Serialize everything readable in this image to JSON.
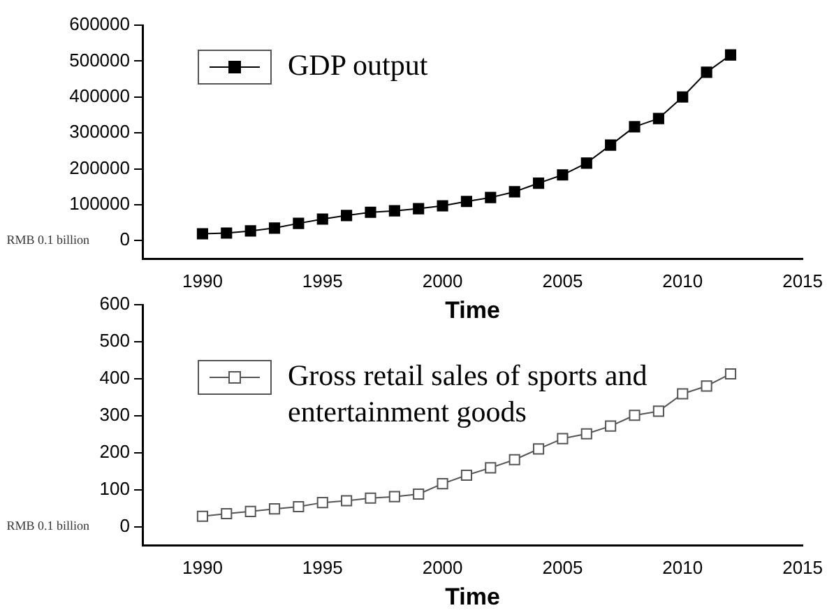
{
  "chart_data": [
    {
      "type": "line",
      "xlabel": "Time",
      "ylabel": "RMB 0.1 billion",
      "x": [
        1990,
        1991,
        1992,
        1993,
        1994,
        1995,
        1996,
        1997,
        1998,
        1999,
        2000,
        2001,
        2002,
        2003,
        2004,
        2005,
        2006,
        2007,
        2008,
        2009,
        2010,
        2011,
        2012
      ],
      "series": [
        {
          "name": "GDP output",
          "color": "#000000",
          "values": [
            19000,
            21000,
            27000,
            35000,
            48000,
            60000,
            70000,
            79000,
            83000,
            89000,
            97000,
            109000,
            120000,
            136000,
            160000,
            183000,
            216000,
            266000,
            317000,
            340000,
            400000,
            469000,
            517000
          ]
        }
      ],
      "xlim": [
        1987.5,
        2015
      ],
      "xticks": [
        1990,
        1995,
        2000,
        2005,
        2010,
        2015
      ],
      "ylim": [
        -50000,
        600000
      ],
      "yticks": [
        0,
        100000,
        200000,
        300000,
        400000,
        500000,
        600000
      ],
      "grid": false,
      "legend": "top left",
      "marker": "square",
      "line_style": "solid"
    },
    {
      "type": "line",
      "xlabel": "Time",
      "ylabel": "RMB 0.1 billion",
      "x": [
        1990,
        1991,
        1992,
        1993,
        1994,
        1995,
        1996,
        1997,
        1998,
        1999,
        2000,
        2001,
        2002,
        2003,
        2004,
        2005,
        2006,
        2007,
        2008,
        2009,
        2010,
        2011,
        2012
      ],
      "series": [
        {
          "name": "Gross retail sales of sports and entertainment goods",
          "color": "#555555",
          "values": [
            28,
            35,
            41,
            48,
            54,
            65,
            70,
            77,
            81,
            88,
            116,
            139,
            159,
            181,
            210,
            238,
            251,
            272,
            301,
            312,
            359,
            380,
            413
          ]
        }
      ],
      "xlim": [
        1987.5,
        2015
      ],
      "xticks": [
        1990,
        1995,
        2000,
        2005,
        2010,
        2015
      ],
      "ylim": [
        -50,
        600
      ],
      "yticks": [
        0,
        100,
        200,
        300,
        400,
        500,
        600
      ],
      "grid": false,
      "legend": "top left",
      "marker": "square",
      "line_style": "solid"
    }
  ]
}
